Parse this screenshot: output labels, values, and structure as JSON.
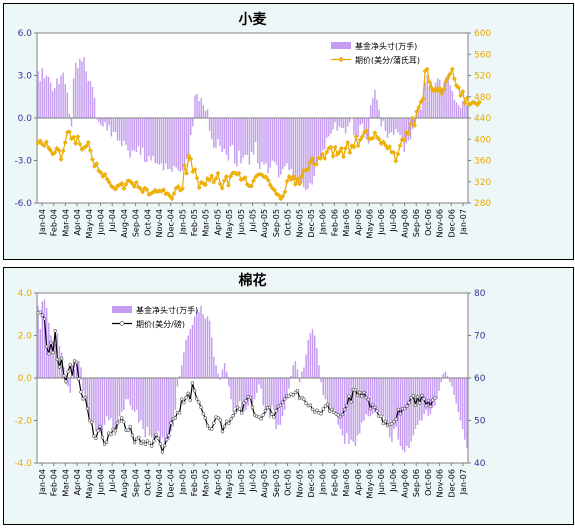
{
  "chart_data": [
    {
      "type": "bar+line",
      "title": "小麦",
      "legend": {
        "placement": "top-right",
        "entries": [
          "基金净头寸(万手)",
          "期价(美分/蒲氏耳)"
        ]
      },
      "left_axis": {
        "ylim": [
          -6,
          6
        ],
        "ticks": [
          "6.0",
          "3.0",
          "0.0",
          "-3.0",
          "-6.0"
        ],
        "tick_values": [
          6,
          3,
          0,
          -3,
          -6
        ]
      },
      "right_axis": {
        "ylim": [
          280,
          600
        ],
        "ticks": [
          "600",
          "560",
          "520",
          "480",
          "440",
          "400",
          "360",
          "320",
          "280"
        ],
        "tick_values": [
          600,
          560,
          520,
          480,
          440,
          400,
          360,
          320,
          280
        ]
      },
      "x_ticks": [
        "Jan-04",
        "Feb-04",
        "Mar-04",
        "Apr-04",
        "May-04",
        "Jun-04",
        "Jul-04",
        "Aug-04",
        "Sep-04",
        "Oct-04",
        "Nov-04",
        "Dec-04",
        "Jan-05",
        "Feb-05",
        "Mar-05",
        "Apr-05",
        "May-05",
        "Jun-05",
        "Jul-05",
        "Aug-05",
        "Sep-05",
        "Oct-05",
        "Nov-05",
        "Dec-05",
        "Jan-06",
        "Feb-06",
        "Mar-06",
        "Apr-06",
        "May-06",
        "Jun-06",
        "Jul-06",
        "Aug-06",
        "Sep-06",
        "Oct-06",
        "Nov-06",
        "Dec-06",
        "Jan-07"
      ],
      "grid": false,
      "series": [
        {
          "name": "基金净头寸(万手)",
          "type": "bar",
          "color": "#c49df0",
          "values": [
            3.3,
            2.6,
            3.5,
            2.8,
            3.0,
            2.9,
            2.5,
            1.9,
            2.1,
            2.8,
            2.4,
            3.0,
            3.2,
            2.4,
            1.8,
            0.3,
            -0.6,
            2.8,
            3.9,
            3.5,
            4.2,
            4.0,
            4.3,
            3.3,
            2.6,
            2.6,
            2.2,
            1.4,
            -0.1,
            -0.3,
            -0.5,
            -0.6,
            -0.3,
            -0.9,
            -0.5,
            -1.3,
            -1.0,
            -1.0,
            -1.6,
            -1.6,
            -2.0,
            -1.6,
            -1.9,
            -2.3,
            -2.8,
            -2.3,
            -2.3,
            -2.4,
            -2.0,
            -2.6,
            -2.1,
            -3.1,
            -3.1,
            -2.7,
            -3.0,
            -2.7,
            -3.2,
            -3.2,
            -3.3,
            -3.2,
            -3.7,
            -3.2,
            -3.6,
            -3.6,
            -3.8,
            -3.4,
            -3.5,
            -3.7,
            -3.8,
            -3.7,
            -3.6,
            -2.9,
            -3.1,
            -1.2,
            -0.6,
            1.6,
            1.7,
            1.2,
            1.4,
            0.9,
            0.5,
            0.6,
            -0.9,
            -1.5,
            -2.1,
            -2.1,
            -1.5,
            -2.0,
            -2.4,
            -2.2,
            -2.6,
            -3.0,
            -2.0,
            -1.9,
            -3.2,
            -3.4,
            -2.3,
            -3.2,
            -2.8,
            -2.6,
            -2.6,
            -3.3,
            -2.4,
            -2.6,
            -1.7,
            -3.2,
            -3.6,
            -3.1,
            -3.3,
            -3.2,
            -3.9,
            -3.5,
            -3.0,
            -3.1,
            -3.3,
            -4.2,
            -4.0,
            -3.6,
            -3.4,
            -3.2,
            -3.7,
            -3.6,
            -4.0,
            -4.4,
            -4.6,
            -4.4,
            -4.6,
            -4.9,
            -5.1,
            -5.0,
            -4.6,
            -4.7,
            -4.1,
            -3.3,
            -2.9,
            -2.7,
            -2.3,
            -2.2,
            -1.4,
            -1.3,
            -1.1,
            -0.8,
            -0.3,
            -0.9,
            -0.6,
            -0.7,
            -0.7,
            -1.1,
            -0.6,
            -0.3,
            0.0,
            -1.2,
            -1.5,
            -1.3,
            -0.5,
            -0.4,
            -1.2,
            -1.5,
            -1.8,
            0.9,
            1.4,
            2.0,
            1.3,
            0.6,
            -0.6,
            -0.2,
            -0.9,
            -1.4,
            -1.1,
            -1.0,
            -1.2,
            -0.8,
            -1.0,
            -1.2,
            -1.5,
            -2.4,
            -1.8,
            -1.6,
            -1.5,
            -0.8,
            -0.3,
            0.4,
            0.9,
            0.6,
            1.5,
            2.5,
            3.0,
            2.3,
            2.5,
            2.0,
            2.5,
            2.8,
            2.7,
            2.1,
            2.5,
            2.9,
            3.1,
            2.3,
            1.9,
            1.3,
            1.1,
            0.9,
            0.7,
            1.2,
            1.0,
            0.9
          ]
        },
        {
          "name": "期价(美分/蒲氏耳)",
          "type": "line",
          "color": "#e8a800",
          "marker_color": "#f4b400",
          "values": [
            393,
            397,
            391,
            388,
            395,
            384,
            379,
            372,
            375,
            383,
            379,
            362,
            378,
            394,
            413,
            414,
            401,
            404,
            392,
            405,
            391,
            381,
            384,
            387,
            394,
            379,
            362,
            349,
            354,
            341,
            337,
            330,
            334,
            325,
            319,
            312,
            309,
            306,
            312,
            314,
            317,
            307,
            315,
            322,
            321,
            317,
            311,
            319,
            310,
            307,
            301,
            308,
            305,
            296,
            298,
            300,
            304,
            301,
            303,
            302,
            305,
            297,
            298,
            293,
            288,
            298,
            308,
            311,
            304,
            307,
            351,
            336,
            369,
            363,
            339,
            343,
            327,
            309,
            319,
            317,
            314,
            326,
            323,
            331,
            319,
            326,
            336,
            316,
            308,
            322,
            330,
            313,
            330,
            336,
            337,
            334,
            336,
            324,
            325,
            328,
            315,
            312,
            312,
            322,
            329,
            333,
            334,
            333,
            329,
            329,
            323,
            314,
            308,
            304,
            297,
            295,
            288,
            293,
            301,
            321,
            330,
            324,
            330,
            315,
            326,
            316,
            330,
            341,
            342,
            343,
            356,
            364,
            353,
            353,
            365,
            364,
            372,
            364,
            376,
            383,
            385,
            368,
            385,
            371,
            376,
            383,
            367,
            383,
            394,
            375,
            388,
            385,
            405,
            388,
            399,
            405,
            413,
            416,
            401,
            401,
            402,
            412,
            404,
            400,
            392,
            395,
            389,
            383,
            386,
            376,
            375,
            359,
            372,
            388,
            399,
            399,
            413,
            410,
            429,
            440,
            426,
            452,
            460,
            470,
            476,
            528,
            532,
            508,
            497,
            491,
            495,
            491,
            496,
            486,
            494,
            509,
            516,
            523,
            532,
            514,
            501,
            497,
            482,
            490,
            468,
            477,
            465,
            467,
            470,
            468,
            465,
            470
          ]
        }
      ]
    },
    {
      "type": "bar+line",
      "title": "棉花",
      "legend": {
        "placement": "top-left",
        "entries": [
          "基金净头寸(万手)",
          "期价(美分/磅)"
        ]
      },
      "left_axis": {
        "ylim": [
          -4,
          4
        ],
        "ticks": [
          "4.0",
          "2.0",
          "0.0",
          "-2.0",
          "-4.0"
        ],
        "tick_values": [
          4,
          2,
          0,
          -2,
          -4
        ]
      },
      "right_axis": {
        "ylim": [
          40,
          80
        ],
        "ticks": [
          "80",
          "70",
          "60",
          "50",
          "40"
        ],
        "tick_values": [
          80,
          70,
          60,
          50,
          40
        ]
      },
      "x_ticks": [
        "Jan-04",
        "Feb-04",
        "Mar-04",
        "Apr-04",
        "May-04",
        "Jun-04",
        "Jul-04",
        "Aug-04",
        "Sep-04",
        "Oct-04",
        "Nov-04",
        "Dec-04",
        "Jan-05",
        "Feb-05",
        "Mar-05",
        "Apr-05",
        "May-05",
        "Jun-05",
        "Jul-05",
        "Aug-05",
        "Sep-05",
        "Oct-05",
        "Nov-05",
        "Dec-05",
        "Jan-06",
        "Feb-06",
        "Mar-06",
        "Apr-06",
        "May-06",
        "Jun-06",
        "Jul-06",
        "Aug-06",
        "Sep-06",
        "Oct-06",
        "Nov-06",
        "Dec-06",
        "Jan-07"
      ],
      "grid": false,
      "series": [
        {
          "name": "基金净头寸(万手)",
          "type": "bar",
          "color": "#c49df0",
          "values": [
            3.4,
            2.3,
            3.6,
            3.7,
            3.3,
            2.6,
            2.0,
            1.7,
            1.6,
            2.1,
            1.5,
            1.2,
            0.5,
            -0.3,
            -0.4,
            -0.7,
            0.6,
            0.4,
            0.7,
            0.8,
            0.5,
            -0.6,
            -1.0,
            -1.5,
            -1.8,
            -2.2,
            -2.1,
            -2.5,
            -2.4,
            -2.3,
            -2.6,
            -2.2,
            -1.8,
            -2.0,
            -1.9,
            -2.4,
            -2.7,
            -2.4,
            -1.8,
            -1.6,
            -1.5,
            -1.0,
            -1.0,
            -1.3,
            -1.5,
            -1.6,
            -1.5,
            -2.1,
            -2.0,
            -2.4,
            -2.8,
            -2.3,
            -2.7,
            -2.8,
            -2.9,
            -2.7,
            -2.5,
            -3.0,
            -2.8,
            -3.2,
            -3.0,
            -2.9,
            -2.5,
            -2.3,
            -1.5,
            -0.4,
            0.1,
            0.6,
            1.2,
            1.8,
            2.0,
            2.3,
            2.5,
            2.9,
            3.2,
            3.1,
            3.4,
            3.0,
            2.8,
            2.9,
            2.7,
            1.9,
            1.0,
            0.6,
            0.2,
            -0.1,
            0.4,
            0.7,
            0.3,
            -0.4,
            -1.0,
            -1.6,
            -1.4,
            -1.6,
            -1.1,
            -1.4,
            -1.6,
            -1.5,
            -1.3,
            -0.9,
            -1.2,
            -1.0,
            -0.7,
            -0.3,
            -0.5,
            -1.3,
            -1.7,
            -1.5,
            -1.9,
            -1.3,
            -1.5,
            -2.4,
            -2.2,
            -2.2,
            -1.8,
            -1.5,
            -1.0,
            -0.5,
            0.1,
            0.6,
            0.8,
            0.4,
            -0.2,
            0.3,
            0.5,
            1.1,
            1.8,
            2.1,
            2.3,
            2.0,
            1.4,
            0.6,
            -0.2,
            -0.8,
            -1.0,
            -1.3,
            -1.4,
            -1.5,
            -1.5,
            -1.8,
            -2.2,
            -2.4,
            -2.7,
            -3.1,
            -2.6,
            -3.1,
            -2.9,
            -3.0,
            -3.2,
            -2.7,
            -2.6,
            -2.1,
            -2.0,
            -1.7,
            -1.8,
            -1.8,
            -1.7,
            -1.6,
            -1.5,
            -1.6,
            -1.7,
            -1.8,
            -2.2,
            -2.3,
            -2.8,
            -3.0,
            -2.4,
            -2.3,
            -2.9,
            -3.2,
            -3.4,
            -3.5,
            -3.2,
            -3.3,
            -3.0,
            -2.7,
            -2.4,
            -2.2,
            -2.0,
            -2.0,
            -1.7,
            -1.5,
            -1.8,
            -1.7,
            -1.4,
            -1.3,
            -1.0,
            -0.6,
            -0.2,
            0.2,
            0.3,
            0.1,
            -0.2,
            -0.4,
            -0.8,
            -1.2,
            -1.6,
            -2.0,
            -2.4,
            -2.9,
            -3.3
          ]
        },
        {
          "name": "期价(美分/磅)",
          "type": "line",
          "color": "#000000",
          "marker_color": "#ffffff",
          "values": [
            75.3,
            75.5,
            74.8,
            73.9,
            67.4,
            65.7,
            68.3,
            66.0,
            71.1,
            64.4,
            62.6,
            64.6,
            60.5,
            59.2,
            61.5,
            63.1,
            60.3,
            64.0,
            63.7,
            59.8,
            56.7,
            55.1,
            55.4,
            52.8,
            50.0,
            49.6,
            46.3,
            45.8,
            47.6,
            48.6,
            46.0,
            44.4,
            44.9,
            47.0,
            46.7,
            47.9,
            47.6,
            49.4,
            49.8,
            50.6,
            49.7,
            47.7,
            47.7,
            48.5,
            46.5,
            44.8,
            45.7,
            46.0,
            44.6,
            45.1,
            44.4,
            45.2,
            44.7,
            44.0,
            45.2,
            46.7,
            45.8,
            44.5,
            42.6,
            44.1,
            45.5,
            46.5,
            49.4,
            50.4,
            50.6,
            51.9,
            51.8,
            55.0,
            54.2,
            55.4,
            56.4,
            54.8,
            58.8,
            57.0,
            55.1,
            54.3,
            53.1,
            51.6,
            50.6,
            48.8,
            48.1,
            48.0,
            49.4,
            50.8,
            50.6,
            50.1,
            47.4,
            48.6,
            49.8,
            49.3,
            50.4,
            51.1,
            51.9,
            53.1,
            52.7,
            51.8,
            54.1,
            54.6,
            55.6,
            55.4,
            53.1,
            51.3,
            51.0,
            50.8,
            50.4,
            51.3,
            52.3,
            53.0,
            53.1,
            51.5,
            50.8,
            52.3,
            53.3,
            53.6,
            54.3,
            55.1,
            55.8,
            55.7,
            56.2,
            56.0,
            56.6,
            57.0,
            55.2,
            55.4,
            55.0,
            54.1,
            53.5,
            53.6,
            52.6,
            52.0,
            52.4,
            51.8,
            51.6,
            52.7,
            53.4,
            53.8,
            52.2,
            52.6,
            51.9,
            51.6,
            51.3,
            50.9,
            51.4,
            52.6,
            53.5,
            55.7,
            54.4,
            57.3,
            57.2,
            55.9,
            56.6,
            55.7,
            56.6,
            55.4,
            54.9,
            52.8,
            53.7,
            53.1,
            52.2,
            51.0,
            51.0,
            49.3,
            49.8,
            48.8,
            49.1,
            49.2,
            49.7,
            50.3,
            52.6,
            51.6,
            52.8,
            52.8,
            53.4,
            54.2,
            55.4,
            55.8,
            53.6,
            55.6,
            54.1,
            55.9,
            55.1,
            53.5,
            54.7,
            53.3,
            54.8,
            55.3
          ]
        }
      ]
    }
  ]
}
